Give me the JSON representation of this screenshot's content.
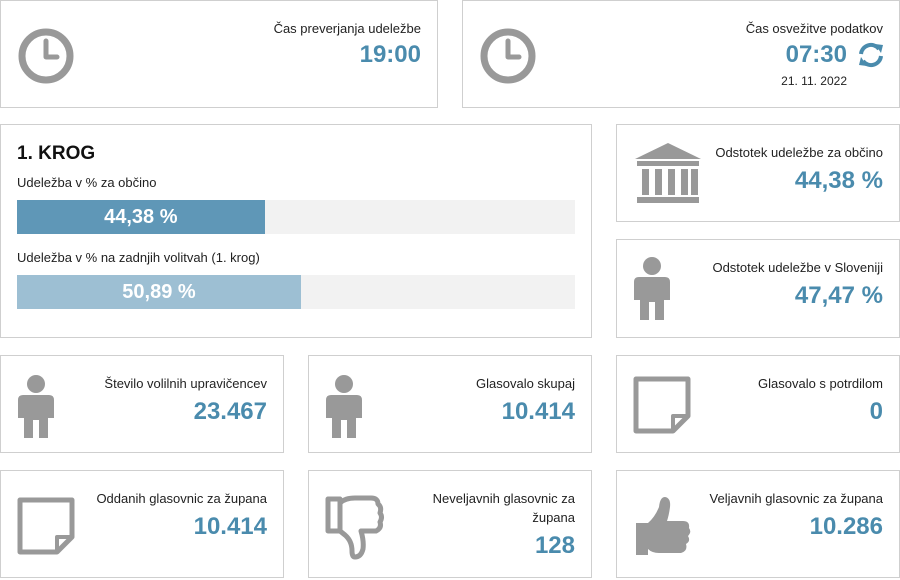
{
  "check_time": {
    "label": "Čas preverjanja udeležbe",
    "value": "19:00"
  },
  "refresh": {
    "label": "Čas osvežitve podatkov",
    "time": "07:30",
    "date": "21. 11. 2022"
  },
  "round": {
    "title": "1. KROG",
    "bars": [
      {
        "label": "Udeležba v % za občino",
        "text": "44,38 %",
        "value": 44.38,
        "color": "#5f97b7"
      },
      {
        "label": "Udeležba v % na zadnjih volitvah (1. krog)",
        "text": "50,89 %",
        "value": 50.89,
        "color": "#9dbfd3"
      }
    ]
  },
  "municipality_turnout": {
    "label": "Odstotek udeležbe za občino",
    "value": "44,38 %"
  },
  "slovenia_turnout": {
    "label": "Odstotek udeležbe v Sloveniji",
    "value": "47,47 %"
  },
  "eligible_voters": {
    "label": "Število volilnih upravičencev",
    "value": "23.467"
  },
  "voted_total": {
    "label": "Glasovalo skupaj",
    "value": "10.414"
  },
  "voted_certificate": {
    "label": "Glasovalo s potrdilom",
    "value": "0"
  },
  "ballots_cast": {
    "label": "Oddanih glasovnic za župana",
    "value": "10.414"
  },
  "invalid_ballots": {
    "label": "Neveljavnih glasovnic za župana",
    "value": "128"
  },
  "valid_ballots": {
    "label": "Veljavnih glasovnic za župana",
    "value": "10.286"
  },
  "icons": [
    "clock-icon",
    "refresh-icon",
    "institution-icon",
    "person-icon",
    "note-icon",
    "thumbs-down-icon",
    "thumbs-up-icon"
  ],
  "colors": {
    "accent": "#4a8bad",
    "icon": "#999999",
    "bar_current": "#5f97b7",
    "bar_previous": "#9dbfd3"
  }
}
